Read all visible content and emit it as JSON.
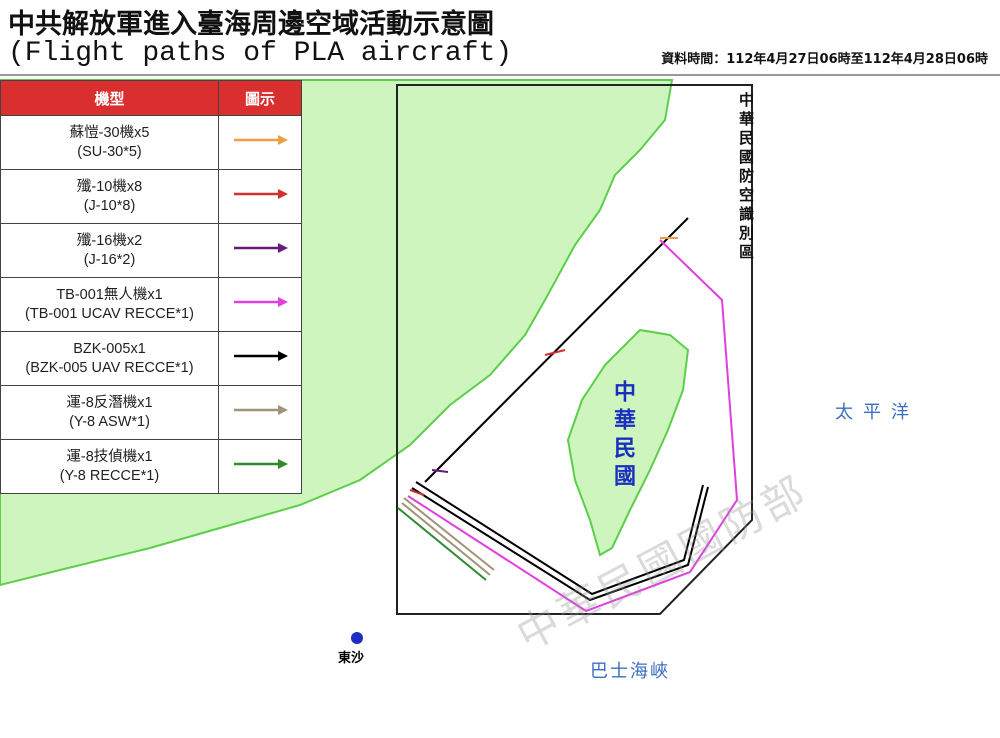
{
  "header": {
    "title": "中共解放軍進入臺海周邊空域活動示意圖",
    "subtitle": "(Flight paths of PLA aircraft)",
    "data_time": "資料時間：112年4月27日06時至112年4月28日06時"
  },
  "legend": {
    "col_type": "機型",
    "col_symbol": "圖示",
    "rows": [
      {
        "zh": "蘇愷-30機x5",
        "en": "(SU-30*5)",
        "color": "#e8a040"
      },
      {
        "zh": "殲-10機x8",
        "en": "(J-10*8)",
        "color": "#d03030"
      },
      {
        "zh": "殲-16機x2",
        "en": "(J-16*2)",
        "color": "#6a1a7a"
      },
      {
        "zh": "TB-001無人機x1",
        "en": "(TB-001 UCAV RECCE*1)",
        "color": "#e040e0"
      },
      {
        "zh": "BZK-005x1",
        "en": "(BZK-005 UAV RECCE*1)",
        "color": "#000000"
      },
      {
        "zh": "運-8反潛機x1",
        "en": "(Y-8 ASW*1)",
        "color": "#a09478"
      },
      {
        "zh": "運-8技偵機x1",
        "en": "(Y-8 RECCE*1)",
        "color": "#2e8a2e"
      }
    ]
  },
  "map": {
    "adiz_label": "中華民國防空識別區",
    "taiwan_label": "中華民國",
    "pacific_label": "太平洋",
    "bashi_label": "巴士海峽",
    "dongsha_label": "東沙",
    "watermark": "中華民國國防部",
    "land_color": "#cdf5bd",
    "coast_color": "#5ccf4a",
    "label_color": "#3a6fc0"
  }
}
